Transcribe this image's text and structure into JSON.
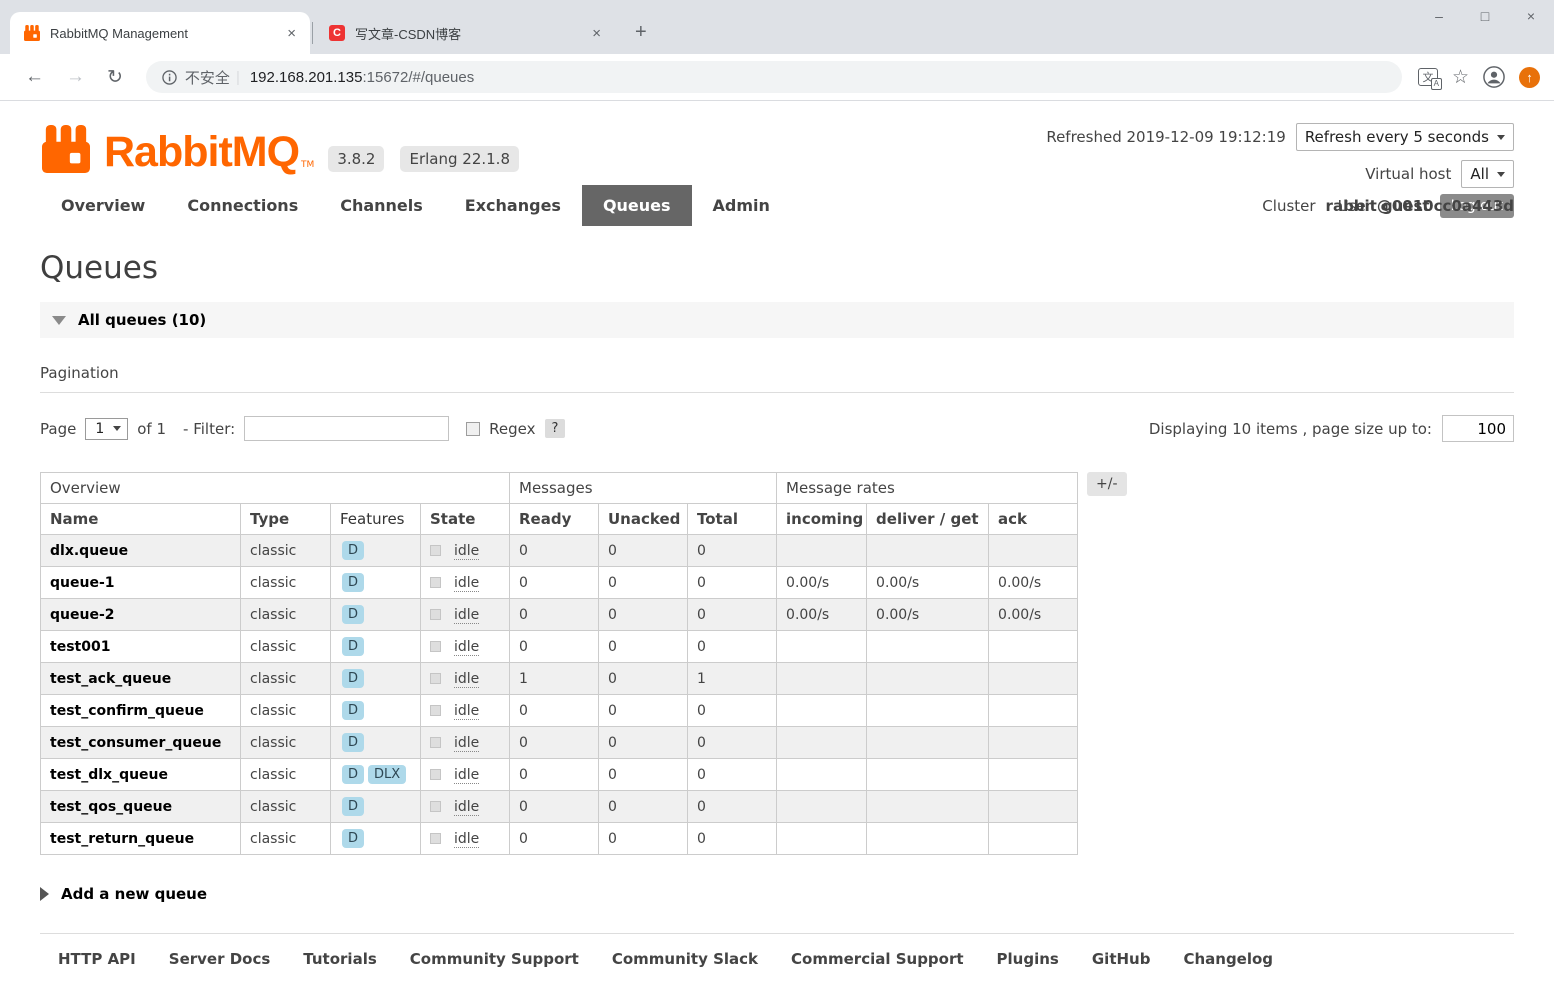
{
  "browser": {
    "tabs": [
      {
        "title": "RabbitMQ Management",
        "active": true
      },
      {
        "title": "写文章-CSDN博客",
        "active": false
      }
    ],
    "address": {
      "security_label": "不安全",
      "separator": "|",
      "host": "192.168.201.135",
      "path": ":15672/#/queues"
    },
    "csdn_icon_letter": "C"
  },
  "icons": {
    "back": "←",
    "forward": "→",
    "reload": "↻",
    "close": "×",
    "new_tab": "+",
    "minimize": "–",
    "maximize": "□",
    "star": "☆",
    "update_arrow": "↑"
  },
  "header": {
    "brand": "RabbitMQ",
    "trademark": "TM",
    "version_badge": "3.8.2",
    "erlang_badge": "Erlang 22.1.8",
    "refreshed": "Refreshed 2019-12-09 19:12:19",
    "refresh_interval": "Refresh every 5 seconds",
    "virtual_host_label": "Virtual host",
    "virtual_host_value": "All",
    "cluster_label": "Cluster",
    "cluster_value": "rabbit@0010cc0a443d",
    "user_label": "User",
    "user_value": "guest",
    "logout": "Log out"
  },
  "nav": {
    "items": [
      {
        "label": "Overview",
        "active": false
      },
      {
        "label": "Connections",
        "active": false
      },
      {
        "label": "Channels",
        "active": false
      },
      {
        "label": "Exchanges",
        "active": false
      },
      {
        "label": "Queues",
        "active": true
      },
      {
        "label": "Admin",
        "active": false
      }
    ]
  },
  "page": {
    "title": "Queues",
    "section_all_queues": "All queues (10)",
    "pagination_title": "Pagination",
    "page_label": "Page",
    "page_value": "1",
    "of_label": "of 1",
    "filter_label": "- Filter:",
    "filter_value": "",
    "regex_label": "Regex",
    "help_label": "?",
    "displaying_label": "Displaying 10 items , page size up to:",
    "page_size_value": "100",
    "columns_button": "+/-",
    "add_queue": "Add a new queue"
  },
  "table": {
    "groups": [
      {
        "label": "Overview",
        "span": 4
      },
      {
        "label": "Messages",
        "span": 3
      },
      {
        "label": "Message rates",
        "span": 3
      }
    ],
    "columns": [
      "Name",
      "Type",
      "Features",
      "State",
      "Ready",
      "Unacked",
      "Total",
      "incoming",
      "deliver / get",
      "ack"
    ],
    "rows": [
      {
        "name": "dlx.queue",
        "type": "classic",
        "features": [
          "D"
        ],
        "state": "idle",
        "ready": "0",
        "unacked": "0",
        "total": "0",
        "incoming": "",
        "deliver_get": "",
        "ack": ""
      },
      {
        "name": "queue-1",
        "type": "classic",
        "features": [
          "D"
        ],
        "state": "idle",
        "ready": "0",
        "unacked": "0",
        "total": "0",
        "incoming": "0.00/s",
        "deliver_get": "0.00/s",
        "ack": "0.00/s"
      },
      {
        "name": "queue-2",
        "type": "classic",
        "features": [
          "D"
        ],
        "state": "idle",
        "ready": "0",
        "unacked": "0",
        "total": "0",
        "incoming": "0.00/s",
        "deliver_get": "0.00/s",
        "ack": "0.00/s"
      },
      {
        "name": "test001",
        "type": "classic",
        "features": [
          "D"
        ],
        "state": "idle",
        "ready": "0",
        "unacked": "0",
        "total": "0",
        "incoming": "",
        "deliver_get": "",
        "ack": ""
      },
      {
        "name": "test_ack_queue",
        "type": "classic",
        "features": [
          "D"
        ],
        "state": "idle",
        "ready": "1",
        "unacked": "0",
        "total": "1",
        "incoming": "",
        "deliver_get": "",
        "ack": ""
      },
      {
        "name": "test_confirm_queue",
        "type": "classic",
        "features": [
          "D"
        ],
        "state": "idle",
        "ready": "0",
        "unacked": "0",
        "total": "0",
        "incoming": "",
        "deliver_get": "",
        "ack": ""
      },
      {
        "name": "test_consumer_queue",
        "type": "classic",
        "features": [
          "D"
        ],
        "state": "idle",
        "ready": "0",
        "unacked": "0",
        "total": "0",
        "incoming": "",
        "deliver_get": "",
        "ack": ""
      },
      {
        "name": "test_dlx_queue",
        "type": "classic",
        "features": [
          "D",
          "DLX"
        ],
        "state": "idle",
        "ready": "0",
        "unacked": "0",
        "total": "0",
        "incoming": "",
        "deliver_get": "",
        "ack": ""
      },
      {
        "name": "test_qos_queue",
        "type": "classic",
        "features": [
          "D"
        ],
        "state": "idle",
        "ready": "0",
        "unacked": "0",
        "total": "0",
        "incoming": "",
        "deliver_get": "",
        "ack": ""
      },
      {
        "name": "test_return_queue",
        "type": "classic",
        "features": [
          "D"
        ],
        "state": "idle",
        "ready": "0",
        "unacked": "0",
        "total": "0",
        "incoming": "",
        "deliver_get": "",
        "ack": ""
      }
    ]
  },
  "footer": {
    "links": [
      "HTTP API",
      "Server Docs",
      "Tutorials",
      "Community Support",
      "Community Slack",
      "Commercial Support",
      "Plugins",
      "GitHub",
      "Changelog"
    ]
  }
}
